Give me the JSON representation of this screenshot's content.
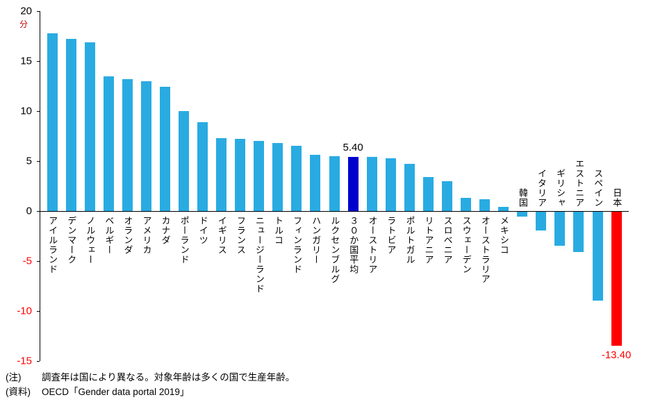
{
  "chart_data": {
    "type": "bar",
    "title": "",
    "unit_label": "分",
    "ylabel": "",
    "xlabel": "",
    "ylim": [
      -15,
      20
    ],
    "yticks": [
      20,
      15,
      10,
      5,
      0,
      -5,
      -10,
      -15
    ],
    "grid": false,
    "legend": "none",
    "categories": [
      "アイルランド",
      "デンマーク",
      "ノルウェー",
      "ベルギー",
      "オランダ",
      "アメリカ",
      "カナダ",
      "ポーランド",
      "ドイツ",
      "イギリス",
      "フランス",
      "ニュージーランド",
      "トルコ",
      "フィンランド",
      "ハンガリー",
      "ルクセンブルグ",
      "３０か国平均",
      "オーストリア",
      "ラトビア",
      "ポルトガル",
      "リトアニア",
      "スロベニア",
      "スウェーデン",
      "オーストラリア",
      "メキシコ",
      "韓国",
      "イタリア",
      "ギリシャ",
      "エストニア",
      "スペイン",
      "日本"
    ],
    "values": [
      17.8,
      17.2,
      16.9,
      13.5,
      13.2,
      13.0,
      12.4,
      10.0,
      8.9,
      7.3,
      7.2,
      7.0,
      6.8,
      6.5,
      5.6,
      5.5,
      5.4,
      5.4,
      5.3,
      4.7,
      3.4,
      3.0,
      1.3,
      1.2,
      0.4,
      -0.5,
      -1.9,
      -3.4,
      -4.0,
      -8.9,
      -13.4
    ],
    "highlight": {
      "average_index": 16,
      "japan_index": 30
    },
    "annotations": [
      {
        "index": 16,
        "text": "5.40",
        "color": "#000000"
      },
      {
        "index": 30,
        "text": "-13.40",
        "color": "#FF0000"
      }
    ],
    "colors": {
      "bar": "#29ABE2",
      "average_bar": "#0000CD",
      "japan_bar": "#FF0000",
      "negative_tick_text": "#FF0000",
      "unit_text": "#C00000",
      "axis": "#000000"
    }
  },
  "notes": {
    "note_label": "(注)",
    "note_text": "調査年は国により異なる。対象年齢は多くの国で生産年齢。",
    "source_label": "(資料)",
    "source_text": "OECD「Gender data portal 2019」"
  }
}
